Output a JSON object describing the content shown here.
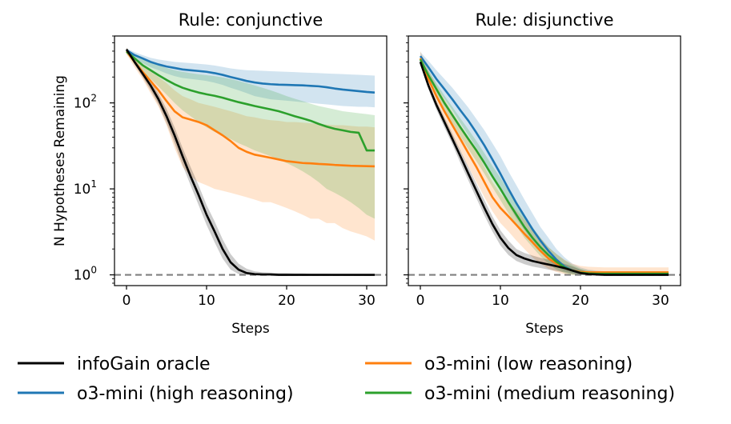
{
  "chart_data": {
    "type": "line",
    "ylabel": "N Hypotheses Remaining",
    "yscale": "log",
    "ylim": [
      0.75,
      600
    ],
    "xlim": [
      -1.5,
      32.5
    ],
    "xticks": [
      0,
      10,
      20,
      30
    ],
    "yticks": [
      {
        "value": 1,
        "base": "10",
        "exp": "0"
      },
      {
        "value": 10,
        "base": "10",
        "exp": "1"
      },
      {
        "value": 100,
        "base": "10",
        "exp": "2"
      }
    ],
    "reference_line": {
      "y": 1,
      "style": "dashed",
      "color": "#808080"
    },
    "x": [
      0,
      1,
      2,
      3,
      4,
      5,
      6,
      7,
      8,
      9,
      10,
      11,
      12,
      13,
      14,
      15,
      16,
      17,
      18,
      19,
      20,
      21,
      22,
      23,
      24,
      25,
      26,
      27,
      28,
      29,
      30,
      31
    ],
    "legend": {
      "placement": "bottom",
      "entries": [
        {
          "label": "infoGain oracle",
          "color": "#000000"
        },
        {
          "label": "o3-mini (low reasoning)",
          "color": "#ff7f0e"
        },
        {
          "label": "o3-mini (high reasoning)",
          "color": "#1f77b4"
        },
        {
          "label": "o3-mini (medium reasoning)",
          "color": "#2ca02c"
        }
      ]
    },
    "panels": [
      {
        "title": "Rule: conjunctive",
        "xlabel": "Steps",
        "series": [
          {
            "name": "o3-mini (low reasoning)",
            "color": "#ff7f0e",
            "values": [
              400,
              300,
              230,
              180,
              140,
              105,
              80,
              68,
              64,
              60,
              55,
              48,
              42,
              36,
              30,
              27,
              25,
              24,
              23,
              22,
              21,
              20.5,
              20,
              19.8,
              19.5,
              19.3,
              19,
              18.8,
              18.6,
              18.5,
              18.4,
              18.3
            ],
            "lower": [
              370,
              260,
              190,
              130,
              90,
              55,
              30,
              18,
              14,
              12,
              11,
              10,
              9.5,
              9,
              8.5,
              8,
              7.5,
              7,
              7,
              6.5,
              6,
              5.5,
              5,
              4.5,
              4.5,
              4,
              4,
              3.5,
              3.2,
              3,
              2.8,
              2.5
            ],
            "upper": [
              440,
              340,
              270,
              230,
              200,
              170,
              140,
              120,
              110,
              100,
              95,
              90,
              85,
              80,
              75,
              70,
              68,
              65,
              63,
              62,
              60,
              60,
              59,
              58,
              57,
              56,
              55,
              55,
              54,
              53,
              53,
              52
            ]
          },
          {
            "name": "o3-mini (high reasoning)",
            "color": "#1f77b4",
            "values": [
              410,
              360,
              330,
              300,
              280,
              265,
              255,
              245,
              240,
              235,
              230,
              222,
              212,
              200,
              190,
              180,
              173,
              168,
              165,
              163,
              162,
              161,
              160,
              158,
              156,
              152,
              147,
              143,
              140,
              137,
              134,
              132
            ],
            "lower": [
              385,
              330,
              290,
              260,
              240,
              220,
              205,
              195,
              190,
              185,
              180,
              172,
              162,
              150,
              140,
              130,
              120,
              115,
              110,
              108,
              106,
              104,
              102,
              100,
              98,
              96,
              94,
              92,
              91,
              90,
              90,
              89
            ],
            "upper": [
              430,
              390,
              360,
              335,
              320,
              310,
              300,
              295,
              290,
              285,
              280,
              272,
              262,
              252,
              245,
              240,
              238,
              236,
              234,
              232,
              230,
              228,
              226,
              224,
              222,
              220,
              218,
              216,
              214,
              212,
              210,
              208
            ]
          },
          {
            "name": "o3-mini (medium reasoning)",
            "color": "#2ca02c",
            "values": [
              395,
              330,
              275,
              240,
              210,
              185,
              165,
              150,
              140,
              132,
              126,
              121,
              115,
              108,
              102,
              97,
              92,
              88,
              84,
              80,
              75,
              70,
              66,
              62,
              57,
              53,
              50,
              48,
              46,
              45,
              28,
              28
            ],
            "lower": [
              370,
              290,
              230,
              190,
              155,
              125,
              100,
              82,
              70,
              60,
              52,
              46,
              42,
              38,
              34,
              31,
              28,
              26,
              24,
              22,
              20,
              18,
              16,
              14,
              12,
              10,
              9,
              8,
              7,
              6,
              5,
              4.5
            ],
            "upper": [
              420,
              370,
              330,
              300,
              275,
              255,
              240,
              230,
              222,
              215,
              210,
              205,
              198,
              190,
              180,
              170,
              160,
              150,
              140,
              130,
              120,
              112,
              105,
              98,
              92,
              88,
              84,
              80,
              78,
              76,
              74,
              72
            ]
          },
          {
            "name": "infoGain oracle",
            "color": "#000000",
            "values": [
              420,
              300,
              220,
              160,
              110,
              70,
              42,
              24,
              14,
              8.5,
              5,
              3.2,
              2,
              1.4,
              1.15,
              1.05,
              1.02,
              1.01,
              1.01,
              1.0,
              1.0,
              1.0,
              1.0,
              1.0,
              1.0,
              1.0,
              1.0,
              1.0,
              1.0,
              1.0,
              1.0,
              1.0
            ],
            "lower": [
              400,
              280,
              200,
              140,
              95,
              58,
              34,
              19,
              11,
              6.5,
              3.8,
              2.4,
              1.55,
              1.15,
              1.02,
              1.0,
              1.0,
              1.0,
              1.0,
              1.0,
              1.0,
              1.0,
              1.0,
              1.0,
              1.0,
              1.0,
              1.0,
              1.0,
              1.0,
              1.0,
              1.0,
              1.0
            ],
            "upper": [
              440,
              320,
              240,
              180,
              128,
              85,
              52,
              30,
              18,
              11,
              6.5,
              4.2,
              2.6,
              1.75,
              1.35,
              1.18,
              1.1,
              1.07,
              1.06,
              1.05,
              1.05,
              1.04,
              1.04,
              1.03,
              1.03,
              1.03,
              1.02,
              1.02,
              1.02,
              1.02,
              1.02,
              1.02
            ]
          }
        ]
      },
      {
        "title": "Rule: disjunctive",
        "xlabel": "Steps",
        "series": [
          {
            "name": "o3-mini (high reasoning)",
            "color": "#1f77b4",
            "values": [
              350,
              260,
              190,
              145,
              110,
              82,
              62,
              45,
              32,
              22,
              15,
              10,
              6.8,
              4.8,
              3.4,
              2.5,
              1.9,
              1.5,
              1.25,
              1.12,
              1.06,
              1.04,
              1.03,
              1.02,
              1.02,
              1.02,
              1.02,
              1.02,
              1.02,
              1.02,
              1.02,
              1.02
            ],
            "lower": [
              320,
              220,
              155,
              112,
              82,
              58,
              42,
              30,
              21,
              14,
              9.5,
              6.5,
              4.5,
              3.3,
              2.4,
              1.9,
              1.5,
              1.25,
              1.1,
              1.04,
              1.0,
              1.0,
              1.0,
              1.0,
              1.0,
              1.0,
              1.0,
              1.0,
              1.0,
              1.0,
              1.0,
              1.0
            ],
            "upper": [
              390,
              310,
              240,
              190,
              150,
              115,
              88,
              65,
              48,
              34,
              24,
              16,
              11,
              7.5,
              5.2,
              3.6,
              2.7,
              2.0,
              1.6,
              1.35,
              1.22,
              1.15,
              1.12,
              1.1,
              1.1,
              1.1,
              1.1,
              1.1,
              1.1,
              1.1,
              1.1,
              1.1
            ]
          },
          {
            "name": "o3-mini (low reasoning)",
            "color": "#ff7f0e",
            "values": [
              330,
              190,
              120,
              80,
              55,
              38,
              26,
              18,
              12,
              8,
              6,
              4.8,
              3.8,
              3,
              2.4,
              1.9,
              1.55,
              1.35,
              1.2,
              1.12,
              1.08,
              1.07,
              1.07,
              1.07,
              1.07,
              1.07,
              1.07,
              1.07,
              1.07,
              1.07,
              1.07,
              1.07
            ],
            "lower": [
              300,
              160,
              95,
              60,
              40,
              27,
              18,
              12,
              8,
              5.5,
              4,
              3.2,
              2.5,
              2.0,
              1.6,
              1.35,
              1.18,
              1.08,
              1.02,
              1.0,
              1.0,
              1.0,
              1.0,
              1.0,
              1.0,
              1.0,
              1.0,
              1.0,
              1.0,
              1.0,
              1.0,
              1.0
            ],
            "upper": [
              400,
              240,
              160,
              110,
              78,
              55,
              38,
              27,
              18,
              12,
              8.8,
              7,
              5.6,
              4.4,
              3.5,
              2.7,
              2.1,
              1.75,
              1.5,
              1.35,
              1.27,
              1.24,
              1.23,
              1.22,
              1.22,
              1.22,
              1.22,
              1.22,
              1.22,
              1.22,
              1.22,
              1.22
            ]
          },
          {
            "name": "o3-mini (medium reasoning)",
            "color": "#2ca02c",
            "values": [
              320,
              210,
              145,
              100,
              72,
              52,
              38,
              28,
              20,
              14,
              10,
              7,
              5,
              3.6,
              2.7,
              2.1,
              1.7,
              1.42,
              1.22,
              1.12,
              1.06,
              1.04,
              1.03,
              1.03,
              1.03,
              1.03,
              1.03,
              1.03,
              1.03,
              1.03,
              1.03,
              1.03
            ],
            "lower": [
              300,
              185,
              122,
              82,
              58,
              41,
              29,
              21,
              15,
              10.5,
              7.4,
              5.2,
              3.7,
              2.7,
              2.1,
              1.65,
              1.35,
              1.15,
              1.05,
              1.0,
              1.0,
              1.0,
              1.0,
              1.0,
              1.0,
              1.0,
              1.0,
              1.0,
              1.0,
              1.0,
              1.0,
              1.0
            ],
            "upper": [
              345,
              240,
              170,
              122,
              90,
              66,
              49,
              36,
              26,
              18.5,
              13.5,
              9.5,
              6.8,
              4.9,
              3.6,
              2.7,
              2.1,
              1.75,
              1.48,
              1.3,
              1.18,
              1.12,
              1.1,
              1.08,
              1.08,
              1.08,
              1.08,
              1.08,
              1.08,
              1.08,
              1.08,
              1.08
            ]
          },
          {
            "name": "infoGain oracle",
            "color": "#000000",
            "values": [
              300,
              160,
              95,
              60,
              38,
              24,
              15,
              9.5,
              6,
              3.9,
              2.7,
              2.05,
              1.7,
              1.55,
              1.45,
              1.38,
              1.32,
              1.26,
              1.2,
              1.12,
              1.05,
              1.02,
              1.01,
              1.0,
              1.0,
              1.0,
              1.0,
              1.0,
              1.0,
              1.0,
              1.0,
              1.0
            ],
            "lower": [
              280,
              145,
              84,
              52,
              33,
              20,
              12.5,
              7.8,
              4.9,
              3.2,
              2.2,
              1.7,
              1.45,
              1.33,
              1.25,
              1.2,
              1.15,
              1.11,
              1.07,
              1.03,
              1.0,
              1.0,
              1.0,
              1.0,
              1.0,
              1.0,
              1.0,
              1.0,
              1.0,
              1.0,
              1.0,
              1.0
            ],
            "upper": [
              320,
              175,
              106,
              68,
              44,
              28,
              18,
              11.5,
              7.4,
              4.8,
              3.3,
              2.5,
              2.0,
              1.8,
              1.68,
              1.58,
              1.5,
              1.42,
              1.34,
              1.25,
              1.15,
              1.08,
              1.05,
              1.03,
              1.02,
              1.02,
              1.02,
              1.02,
              1.02,
              1.02,
              1.02,
              1.02
            ]
          }
        ]
      }
    ]
  }
}
